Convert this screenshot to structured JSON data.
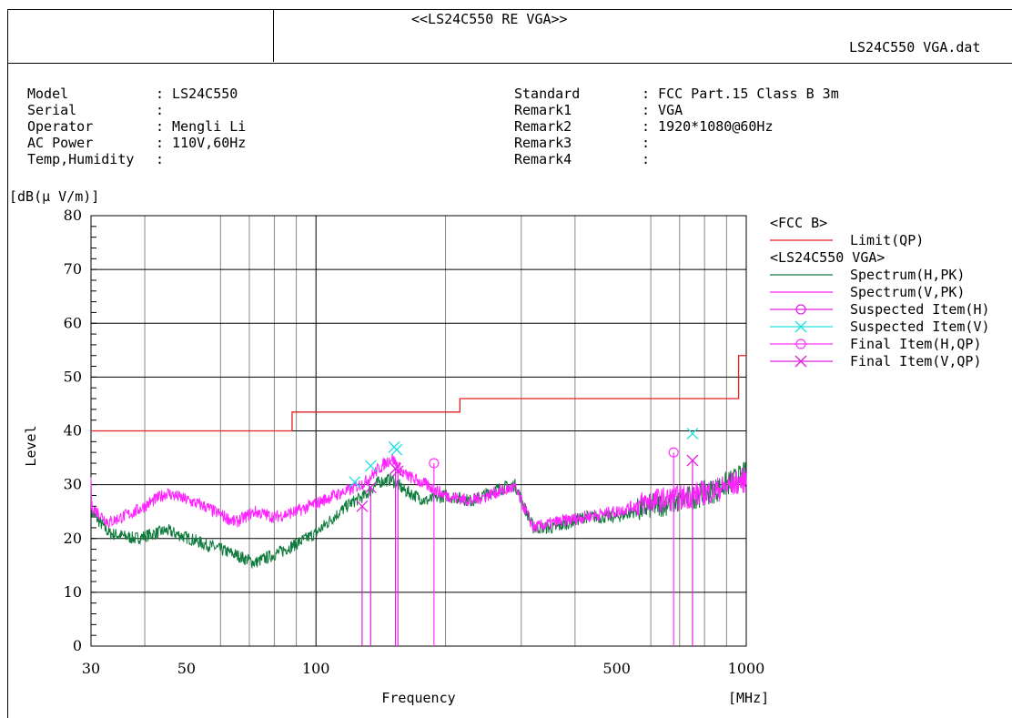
{
  "header": {
    "title": "<<LS24C550 RE VGA>>",
    "filename": "LS24C550 VGA.dat"
  },
  "info_left": [
    {
      "label": "Model",
      "value": ": LS24C550"
    },
    {
      "label": "Serial",
      "value": ":"
    },
    {
      "label": "Operator",
      "value": ": Mengli Li"
    },
    {
      "label": "AC Power",
      "value": ": 110V,60Hz"
    },
    {
      "label": "Temp,Humidity",
      "value": ":"
    }
  ],
  "info_right": [
    {
      "label": "Standard",
      "value": ": FCC Part.15 Class B 3m"
    },
    {
      "label": "Remark1",
      "value": ": VGA"
    },
    {
      "label": "Remark2",
      "value": ": 1920*1080@60Hz"
    },
    {
      "label": "Remark3",
      "value": ":"
    },
    {
      "label": "Remark4",
      "value": ":"
    }
  ],
  "chart_data": {
    "type": "line",
    "title": "",
    "xlabel": "Frequency",
    "x_unit": "[MHz]",
    "ylabel": "Level",
    "y_unit": "[dB(μ V/m)]",
    "xscale": "log",
    "xlim": [
      30,
      1000
    ],
    "ylim": [
      0,
      80
    ],
    "x_ticks": [
      30,
      50,
      100,
      500,
      1000
    ],
    "y_ticks": [
      0,
      10,
      20,
      30,
      40,
      50,
      60,
      70,
      80
    ],
    "grid": true,
    "legend_position": "right",
    "legend_groups": [
      "<FCC B>",
      "<LS24C550 VGA>"
    ],
    "colors": {
      "limit": "#e02020",
      "spectrum_h": "#0f7a3c",
      "spectrum_v": "#ff22ff",
      "suspect_h": "#e020e0",
      "suspect_v": "#20e0e0",
      "final_h": "#ff33ff",
      "final_v": "#e020e0"
    },
    "series": [
      {
        "name": "Limit(QP)",
        "group": "<FCC B>",
        "style": "step",
        "x": [
          30,
          88,
          88,
          216,
          216,
          960,
          960,
          1000
        ],
        "y": [
          40,
          40,
          43.5,
          43.5,
          46,
          46,
          54,
          54
        ]
      },
      {
        "name": "Spectrum(H,PK)",
        "group": "<LS24C550 VGA>",
        "style": "noisy-line",
        "x": [
          30,
          33,
          38,
          45,
          55,
          65,
          72,
          80,
          90,
          100,
          110,
          120,
          130,
          140,
          150,
          160,
          180,
          200,
          230,
          260,
          290,
          320,
          360,
          420,
          500,
          600,
          700,
          850,
          1000
        ],
        "y": [
          25,
          21,
          20,
          21.5,
          19,
          17,
          15.5,
          17,
          19,
          21,
          24,
          26.5,
          28,
          30.5,
          31,
          29,
          27,
          28,
          27,
          29,
          30,
          22,
          22,
          24,
          24,
          26,
          27,
          29,
          32
        ]
      },
      {
        "name": "Spectrum(V,PK)",
        "group": "<LS24C550 VGA>",
        "style": "noisy-line",
        "x": [
          30,
          33,
          38,
          45,
          55,
          65,
          72,
          80,
          90,
          100,
          110,
          120,
          130,
          140,
          150,
          160,
          180,
          200,
          230,
          260,
          290,
          320,
          360,
          420,
          500,
          600,
          700,
          850,
          1000
        ],
        "y": [
          26,
          23,
          25,
          28.5,
          26,
          23,
          25,
          24,
          25,
          26.5,
          28,
          29,
          30.5,
          33,
          35,
          32,
          30,
          28,
          27,
          28.5,
          29.5,
          22,
          23,
          24,
          25,
          27,
          27.5,
          29,
          31
        ]
      },
      {
        "name": "Suspected Item(H)",
        "group": "<LS24C550 VGA>",
        "marker": "o",
        "x": [],
        "y": []
      },
      {
        "name": "Suspected Item(V)",
        "group": "<LS24C550 VGA>",
        "marker": "x",
        "x": [
          123,
          134,
          152,
          154,
          750
        ],
        "y": [
          30.5,
          33.5,
          37,
          36.5,
          39.5
        ]
      },
      {
        "name": "Final Item(H,QP)",
        "group": "<LS24C550 VGA>",
        "marker": "o",
        "x": [
          188,
          678
        ],
        "y": [
          34,
          36
        ]
      },
      {
        "name": "Final Item(V,QP)",
        "group": "<LS24C550 VGA>",
        "marker": "x",
        "x": [
          128,
          134,
          153,
          155,
          750
        ],
        "y": [
          26,
          29.5,
          33,
          32.5,
          34.5
        ]
      }
    ]
  }
}
